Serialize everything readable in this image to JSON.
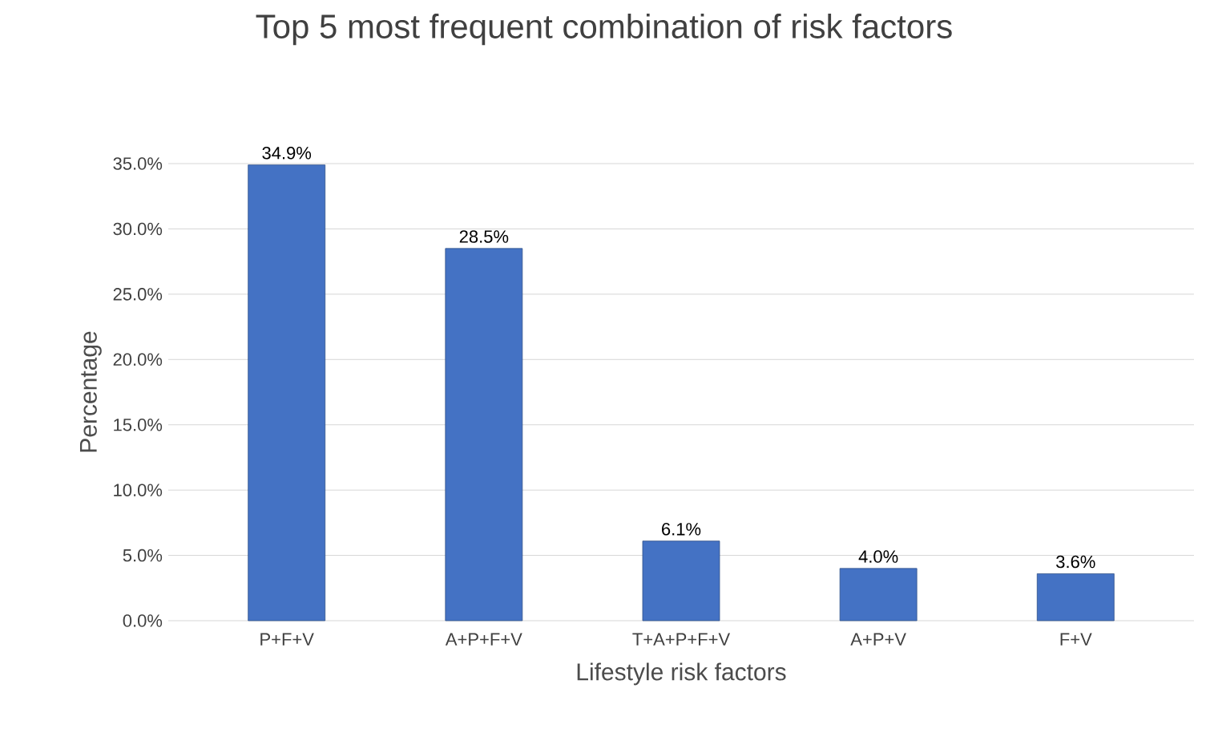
{
  "chart_data": {
    "type": "bar",
    "title": "Top 5 most frequent combination of risk factors",
    "xlabel": "Lifestyle risk factors",
    "ylabel": "Percentage",
    "categories": [
      "P+F+V",
      "A+P+F+V",
      "T+A+P+F+V",
      "A+P+V",
      "F+V"
    ],
    "values": [
      34.9,
      28.5,
      6.1,
      4.0,
      3.6
    ],
    "value_labels": [
      "34.9%",
      "28.5%",
      "6.1%",
      "4.0%",
      "3.6%"
    ],
    "color": "#4472c4",
    "ylim": [
      0,
      35
    ],
    "yticks": [
      {
        "value": 0,
        "label": "0.0%"
      },
      {
        "value": 5,
        "label": "5.0%"
      },
      {
        "value": 10,
        "label": "10.0%"
      },
      {
        "value": 15,
        "label": "15.0%"
      },
      {
        "value": 20,
        "label": "20.0%"
      },
      {
        "value": 25,
        "label": "25.0%"
      },
      {
        "value": 30,
        "label": "30.0%"
      },
      {
        "value": 35,
        "label": "35.0%"
      }
    ],
    "grid": "y"
  }
}
